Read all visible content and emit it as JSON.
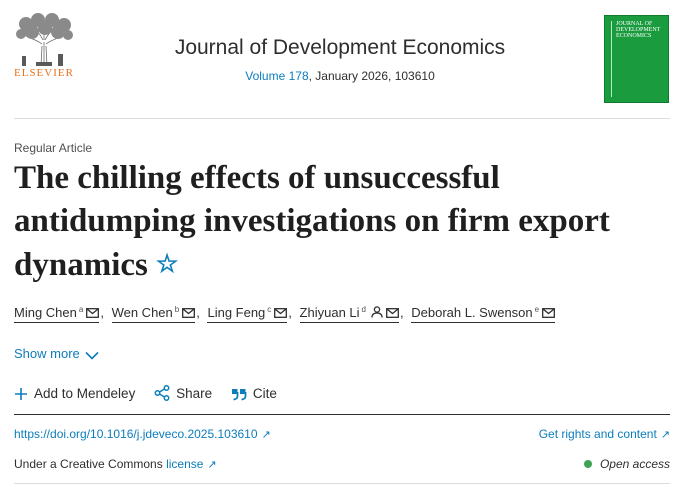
{
  "header": {
    "publisher": "ELSEVIER",
    "journal_title": "Journal of Development Economics",
    "volume_link": "Volume 178",
    "issue_info": ", January 2026, 103610",
    "cover_lines": [
      "Journal of",
      "Development",
      "Economics"
    ]
  },
  "article": {
    "type": "Regular Article",
    "title": "The chilling effects of unsuccessful antidumping investigations on firm export dynamics",
    "star_glyph": "☆"
  },
  "authors": [
    {
      "name": "Ming Chen",
      "sup": "a"
    },
    {
      "name": "Wen Chen",
      "sup": "b"
    },
    {
      "name": "Ling Feng",
      "sup": "c"
    },
    {
      "name": "Zhiyuan Li",
      "sup": "d"
    },
    {
      "name": "Deborah L. Swenson",
      "sup": "e"
    }
  ],
  "show_more": "Show more",
  "actions": {
    "mendeley": "Add to Mendeley",
    "share": "Share",
    "cite": "Cite"
  },
  "links": {
    "doi": "https://doi.org/10.1016/j.jdeveco.2025.103610",
    "rights": "Get rights and content",
    "arrow": "↗"
  },
  "license": {
    "prefix": "Under a Creative Commons ",
    "link": "license"
  },
  "open_access": "Open access",
  "colors": {
    "link_blue": "#0c7dbb",
    "elsevier_orange": "#e9711c",
    "cover_green": "#1a9b3e",
    "oa_green": "#3ea454"
  }
}
